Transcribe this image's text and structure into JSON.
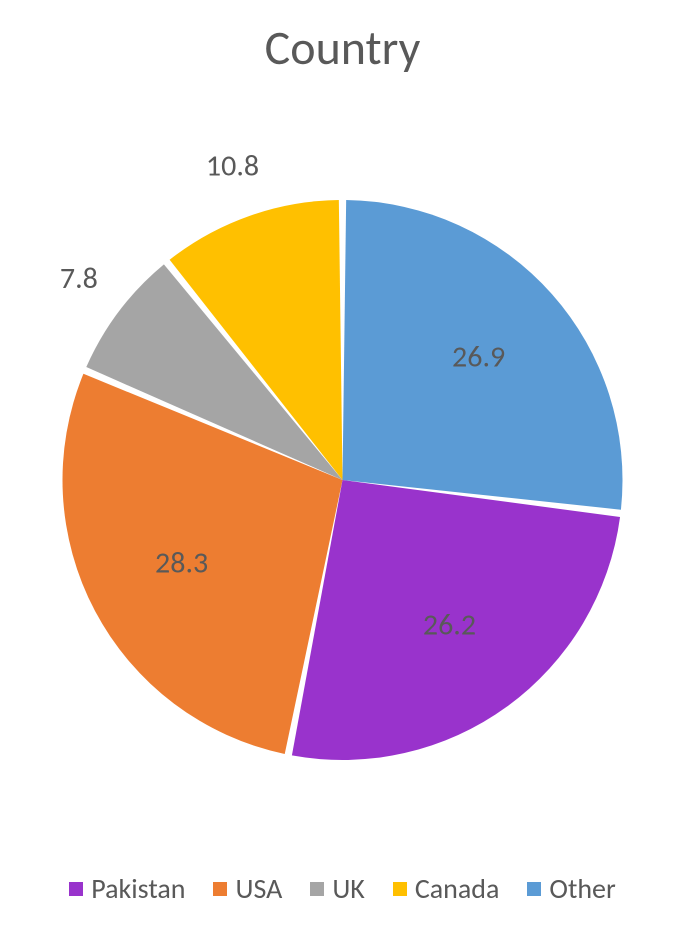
{
  "chart": {
    "type": "pie",
    "title": "Country",
    "title_fontsize": 48,
    "title_color": "#595959",
    "background_color": "#ffffff",
    "label_fontsize": 30,
    "label_color": "#595959",
    "legend_fontsize": 28,
    "legend_color": "#595959",
    "slice_gap_deg": 1.5,
    "start_angle_deg": 90,
    "direction": "clockwise",
    "pie_radius": 280,
    "series": [
      {
        "name": "Other",
        "value": 26.9,
        "color": "#5b9bd5",
        "label": "26.9",
        "label_r": 0.65
      },
      {
        "name": "Pakistan",
        "value": 26.2,
        "color": "#9933cc",
        "label": "26.2",
        "label_r": 0.65
      },
      {
        "name": "USA",
        "value": 28.3,
        "color": "#ed7d31",
        "label": "28.3",
        "label_r": 0.65
      },
      {
        "name": "UK",
        "value": 7.8,
        "color": "#a5a5a5",
        "label": "7.8",
        "label_r": 1.18
      },
      {
        "name": "Canada",
        "value": 10.8,
        "color": "#ffc000",
        "label": "10.8",
        "label_r": 1.18
      }
    ],
    "legend_order": [
      "Pakistan",
      "USA",
      "UK",
      "Canada",
      "Other"
    ],
    "legend_position": "bottom",
    "legend_swatch_size": 14
  }
}
